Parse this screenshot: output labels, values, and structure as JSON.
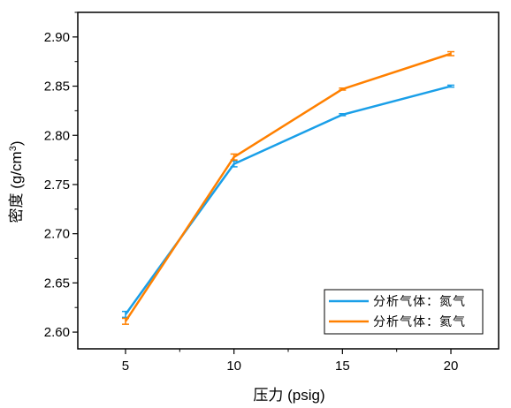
{
  "chart_data": {
    "type": "line",
    "xlabel": "压力 (psig)",
    "ylabel_main": "密度 (g/cm",
    "ylabel_sup": "3",
    "ylabel_tail": ")",
    "x": [
      5,
      10,
      15,
      20
    ],
    "x_ticks": [
      5,
      10,
      15,
      20
    ],
    "x_tick_labels": [
      "5",
      "10",
      "15",
      "20"
    ],
    "xlim": [
      2.8,
      22.2
    ],
    "ylim": [
      2.583,
      2.925
    ],
    "y_ticks": [
      2.6,
      2.65,
      2.7,
      2.75,
      2.8,
      2.85,
      2.9
    ],
    "y_tick_labels": [
      "2.60",
      "2.65",
      "2.70",
      "2.75",
      "2.80",
      "2.85",
      "2.90"
    ],
    "grid": false,
    "legend_position": "bottom-right",
    "series": [
      {
        "name": "分析气体：氮气",
        "color": "#1a9fe8",
        "values": [
          2.618,
          2.771,
          2.821,
          2.85
        ],
        "errors": [
          0.003,
          0.003,
          0.001,
          0.001
        ]
      },
      {
        "name": "分析气体：氦气",
        "color": "#ff8000",
        "values": [
          2.611,
          2.778,
          2.847,
          2.883
        ],
        "errors": [
          0.003,
          0.003,
          0.001,
          0.002
        ]
      }
    ]
  }
}
